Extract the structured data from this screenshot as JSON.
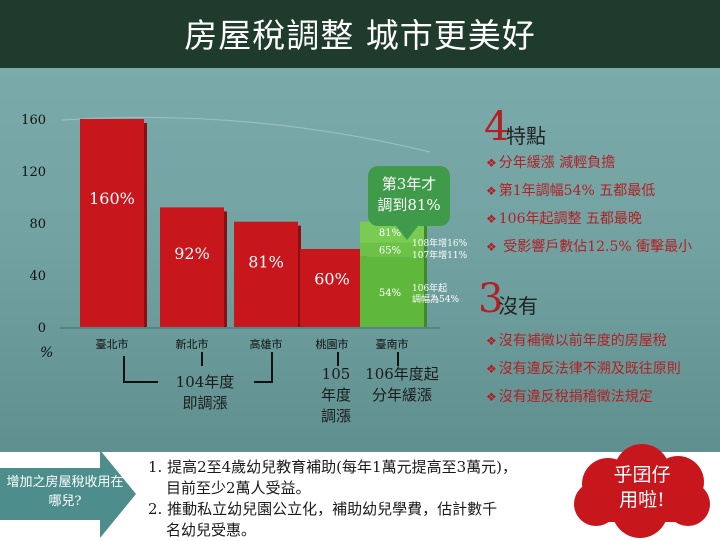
{
  "title": "房屋稅調整 城市更美好",
  "chart_data": {
    "type": "bar",
    "yunit": "%",
    "yticks": [
      "0",
      "40",
      "80",
      "120",
      "160"
    ],
    "ylim": [
      0,
      160
    ],
    "categories": [
      "臺北市",
      "新北市",
      "高雄市",
      "桃園市",
      "臺南市"
    ],
    "values": [
      160,
      92,
      81,
      60,
      81
    ],
    "value_labels": [
      "160%",
      "92%",
      "81%",
      "60%",
      ""
    ],
    "tainan_stack": {
      "values": [
        54,
        65,
        81
      ],
      "labels": [
        "54%",
        "65%",
        "81%"
      ]
    },
    "colors": {
      "main": "#c8161d",
      "tainan": "#5fb83c"
    },
    "stack_notes": [
      "108年增16%",
      "107年增11%",
      "106年起",
      "調幅為54%"
    ],
    "callout": [
      "第3年才",
      "調到81%"
    ]
  },
  "groups": [
    {
      "lines": [
        "104年度",
        "即調漲"
      ]
    },
    {
      "lines": [
        "105",
        "年度",
        "調漲"
      ]
    },
    {
      "lines": [
        "106年度起",
        "分年緩漲"
      ]
    }
  ],
  "features": {
    "num": "4",
    "tail": "特點",
    "items": [
      "分年緩漲 減輕負擔",
      "第1年調幅54% 五都最低",
      "106年起調整 五都最晚",
      " 受影響戶數佔12.5% 衝擊最小"
    ]
  },
  "nots": {
    "num": "3",
    "tail": "沒有",
    "items": [
      "沒有補徵以前年度的房屋稅",
      "沒有違反法律不溯及既往原則",
      "沒有違反稅捐稽徵法規定"
    ]
  },
  "bottom": {
    "arrow": "增加之房屋稅收用在哪兒?",
    "notes": [
      "1. 提高2至4歲幼兒教育補助(每年1萬元提高至3萬元)，",
      "目前至少2萬人受益。",
      "2. 推動私立幼兒園公立化，補助幼兒學費，估計數千",
      "名幼兒受惠。"
    ],
    "cloud": [
      "乎囝仔",
      "用啦!"
    ]
  }
}
